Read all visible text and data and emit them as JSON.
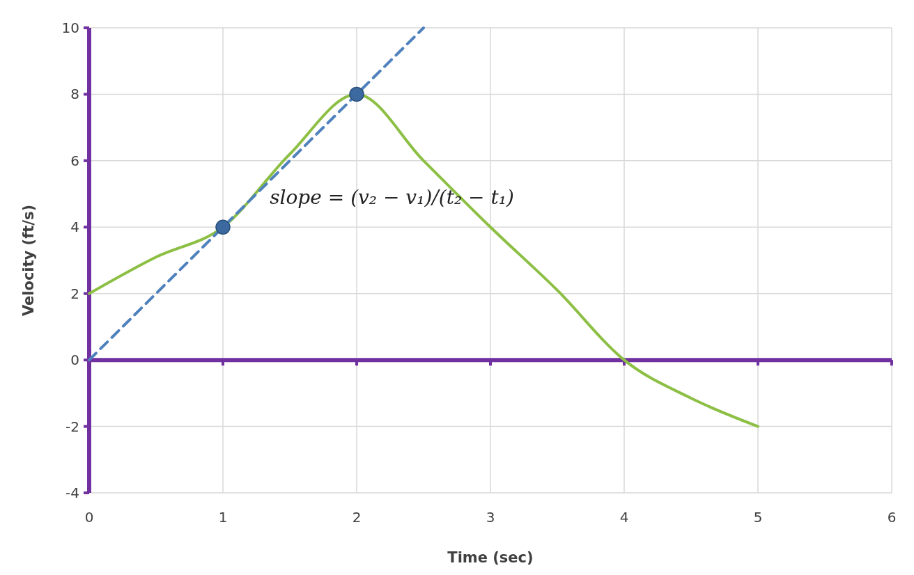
{
  "chart_data": {
    "type": "line",
    "xlabel": "Time (sec)",
    "ylabel": "Velocity (ft/s)",
    "xlim": [
      0,
      6
    ],
    "ylim": [
      -4,
      10
    ],
    "xticks": [
      0,
      1,
      2,
      3,
      4,
      5,
      6
    ],
    "yticks": [
      -4,
      -2,
      0,
      2,
      4,
      6,
      8,
      10
    ],
    "grid": true,
    "ref_lines": [
      {
        "axis": "y",
        "value": 0,
        "color": "#7030a0",
        "line_style": "solid"
      }
    ],
    "series": [
      {
        "type": "line",
        "color": "#8cbf44",
        "marker": "none",
        "line_style": "solid",
        "x": [
          0,
          0.5,
          1,
          1.5,
          2,
          2.5,
          3,
          3.5,
          4,
          4.5,
          5
        ],
        "values": [
          2,
          3.1,
          4,
          6.2,
          8,
          6,
          4,
          2.1,
          0,
          -1.15,
          -2
        ]
      },
      {
        "type": "line",
        "color": "#4f81bd",
        "marker": "none",
        "line_style": "dashed",
        "x": [
          0,
          2.5
        ],
        "values": [
          0,
          10
        ]
      },
      {
        "type": "scatter",
        "color": "#3c6aa0",
        "marker": "circle",
        "x": [
          1,
          2
        ],
        "values": [
          4,
          8
        ]
      }
    ],
    "annotations": [
      "slope = (v₂ − v₁)/(t₂ − t₁)"
    ]
  }
}
